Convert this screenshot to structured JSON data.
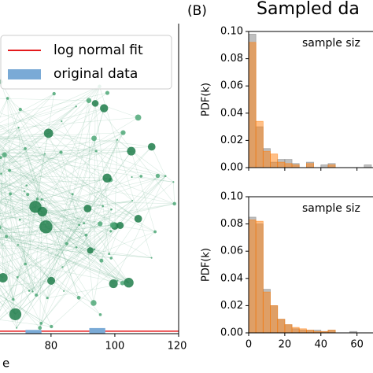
{
  "panel_label": "(B)",
  "title": "Sampled da",
  "chart_data": [
    {
      "type": "histogram",
      "xlabel": "e",
      "xlim": [
        64,
        120
      ],
      "xticks": [
        80,
        100,
        120
      ],
      "ylim": [
        0,
        0.1
      ],
      "legend": "upper left",
      "series": [
        {
          "name": "log normal fit",
          "color": "#e41a1c",
          "kind": "line",
          "x": [
            64,
            120
          ],
          "values": [
            0.0008,
            0.0008
          ]
        },
        {
          "name": "original data",
          "color": "#7aaad6",
          "kind": "bars",
          "bins": [
            72,
            77,
            82,
            87,
            92,
            97
          ],
          "values": [
            0.0012,
            0,
            0,
            0,
            0.0018
          ]
        }
      ]
    },
    {
      "type": "histogram",
      "ylabel": "PDF(k)",
      "annotation": "sample siz",
      "xlim": [
        0,
        68
      ],
      "xticks": [
        0,
        20,
        40,
        60
      ],
      "ylim": [
        0,
        0.1
      ],
      "yticks": [
        {
          "value": 0,
          "label": "0.00"
        },
        {
          "value": 0.02,
          "label": "0.02"
        },
        {
          "value": 0.04,
          "label": "0.04"
        },
        {
          "value": 0.06,
          "label": "0.06"
        },
        {
          "value": 0.08,
          "label": "0.08"
        },
        {
          "value": 0.1,
          "label": "0.10"
        }
      ],
      "bins": [
        0,
        4,
        8,
        12,
        16,
        20,
        24,
        28,
        32,
        36,
        40,
        44,
        48,
        52,
        56,
        60,
        64,
        68
      ],
      "series": [
        {
          "color": "#7f7f7f",
          "values": [
            0.098,
            0.03,
            0.014,
            0.004,
            0.006,
            0.006,
            0.003,
            0,
            0.004,
            0,
            0.002,
            0.003,
            0,
            0,
            0,
            0,
            0.002
          ]
        },
        {
          "color": "#ff7f0e",
          "values": [
            0.092,
            0.034,
            0.012,
            0.01,
            0.004,
            0.003,
            0.002,
            0,
            0.003,
            0,
            0,
            0.002,
            0,
            0,
            0,
            0,
            0
          ]
        }
      ]
    },
    {
      "type": "histogram",
      "ylabel": "PDF(k)",
      "annotation": "sample siz",
      "xlim": [
        0,
        68
      ],
      "xticks": [
        0,
        20,
        40,
        60
      ],
      "ylim": [
        0,
        0.1
      ],
      "yticks": [
        {
          "value": 0,
          "label": "0.00"
        },
        {
          "value": 0.02,
          "label": "0.02"
        },
        {
          "value": 0.04,
          "label": "0.04"
        },
        {
          "value": 0.06,
          "label": "0.06"
        },
        {
          "value": 0.08,
          "label": "0.08"
        },
        {
          "value": 0.1,
          "label": "0.10"
        }
      ],
      "bins": [
        0,
        4,
        8,
        12,
        16,
        20,
        24,
        28,
        32,
        36,
        40,
        44,
        48,
        52,
        56,
        60,
        64,
        68
      ],
      "series": [
        {
          "color": "#7f7f7f",
          "values": [
            0.085,
            0.08,
            0.032,
            0.02,
            0.01,
            0.006,
            0.003,
            0.002,
            0.002,
            0.002,
            0.001,
            0.002,
            0,
            0,
            0.001,
            0,
            0
          ]
        },
        {
          "color": "#ff7f0e",
          "values": [
            0.083,
            0.082,
            0.03,
            0.02,
            0.01,
            0.006,
            0.004,
            0.003,
            0.002,
            0.001,
            0.001,
            0.002,
            0,
            0,
            0,
            0,
            0
          ]
        }
      ]
    }
  ]
}
